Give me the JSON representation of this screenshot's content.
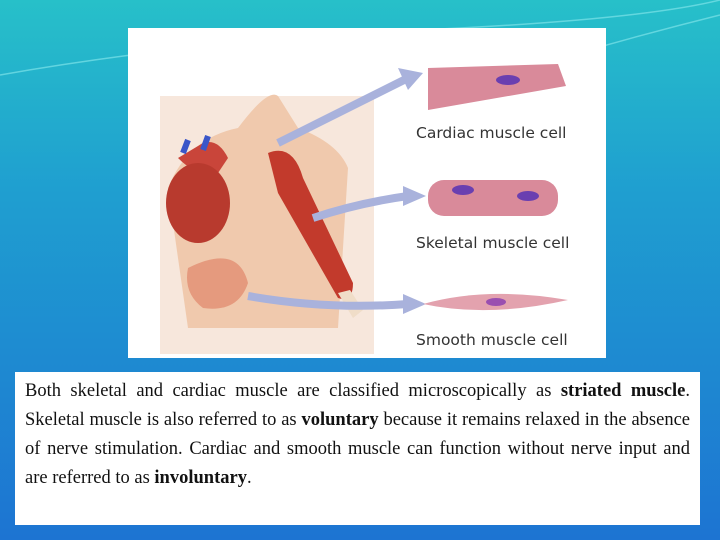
{
  "figure": {
    "labels": [
      "Cardiac muscle cell",
      "Skeletal muscle cell",
      "Smooth muscle cell"
    ]
  },
  "paragraph": [
    {
      "text": "Both skeletal and cardiac muscle are classified microscopically as ",
      "bold": false
    },
    {
      "text": "striated muscle",
      "bold": true
    },
    {
      "text": ". Skeletal muscle is also referred to as ",
      "bold": false
    },
    {
      "text": "voluntary",
      "bold": true
    },
    {
      "text": " because it remains relaxed in the absence of nerve stimulation. Cardiac and smooth muscle can function without nerve input and are referred to as ",
      "bold": false
    },
    {
      "text": "involuntary",
      "bold": true
    },
    {
      "text": ".",
      "bold": false
    }
  ]
}
